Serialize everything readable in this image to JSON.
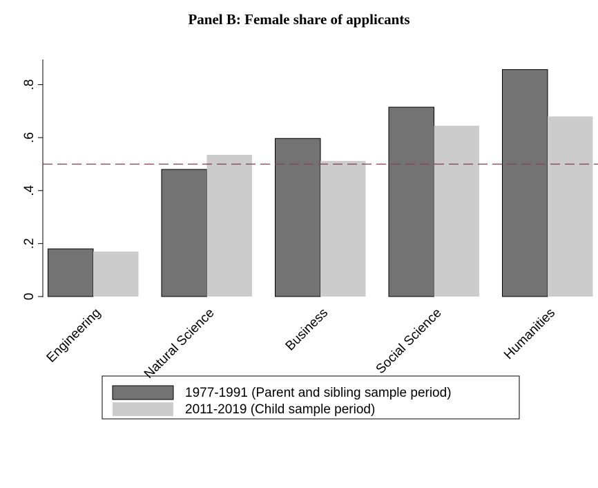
{
  "chart_data": {
    "type": "bar",
    "title": "Panel B: Female share of applicants",
    "categories": [
      "Engineering",
      "Natural Science",
      "Business",
      "Social Science",
      "Humanities"
    ],
    "series": [
      {
        "name": "1977-1991 (Parent and sibling sample period)",
        "color": "#737373",
        "values": [
          0.18,
          0.48,
          0.597,
          0.715,
          0.857
        ]
      },
      {
        "name": "2011-2019 (Child sample period)",
        "color": "#cccccc",
        "values": [
          0.17,
          0.535,
          0.512,
          0.645,
          0.68
        ]
      }
    ],
    "reference_line": {
      "value": 0.5,
      "color": "#a3355a"
    },
    "ylim": [
      0,
      0.89
    ],
    "yticks": [
      0,
      {
        "value": 0.2,
        "label": ".2"
      },
      {
        "value": 0.4,
        "label": ".4"
      },
      {
        "value": 0.6,
        "label": ".6"
      },
      {
        "value": 0.8,
        "label": ".8"
      }
    ],
    "grid": false
  }
}
